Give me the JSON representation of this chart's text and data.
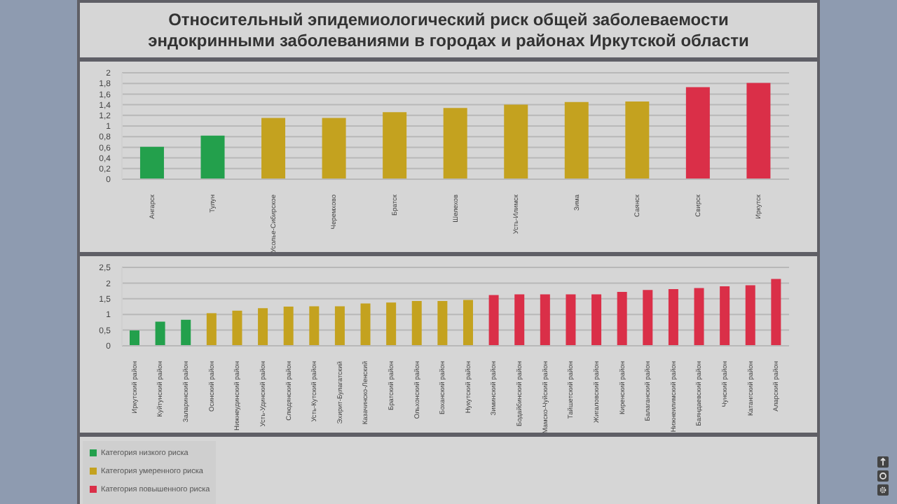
{
  "chart_data": [
    {
      "type": "bar",
      "title": "Относительный эпидемиологический риск общей заболеваемости эндокринными заболеваниями в городах и районах Иркутской области",
      "categories": [
        "Ангарск",
        "Тулун",
        "Усолье-Сибирское",
        "Черемхово",
        "Братск",
        "Шелехов",
        "Усть-Илимск",
        "Зима",
        "Саянск",
        "Свирск",
        "Иркутск"
      ],
      "stacked": true,
      "series": [
        {
          "color": "#23a04c",
          "values": [
            0.61,
            0.82,
            null,
            null,
            null,
            null,
            null,
            null,
            null,
            null,
            null
          ]
        },
        {
          "color": "#c4a21f",
          "values": [
            null,
            null,
            1.15,
            1.15,
            1.26,
            1.34,
            1.4,
            1.45,
            1.46,
            null,
            null
          ]
        },
        {
          "color": "#da2f48",
          "values": [
            null,
            null,
            null,
            null,
            null,
            null,
            null,
            null,
            null,
            1.73,
            1.81
          ]
        }
      ],
      "ylim": [
        0,
        2
      ],
      "yticks": [
        {
          "value": 0,
          "label": "0"
        },
        {
          "value": 0.2,
          "label": "0,2"
        },
        {
          "value": 0.4,
          "label": "0,4"
        },
        {
          "value": 0.6,
          "label": "0,6"
        },
        {
          "value": 0.8,
          "label": "0,8"
        },
        {
          "value": 1,
          "label": "1"
        },
        {
          "value": 1.2,
          "label": "1,2"
        },
        {
          "value": 1.4,
          "label": "1,4"
        },
        {
          "value": 1.6,
          "label": "1,6"
        },
        {
          "value": 1.8,
          "label": "1,8"
        },
        {
          "value": 2,
          "label": "2"
        }
      ],
      "grid": "y",
      "legend": false
    },
    {
      "type": "bar",
      "categories": [
        "Иркутский район",
        "Куйтунский район",
        "Заларинский район",
        "Осинский район",
        "Нижнеудинский район",
        "Усть-Удинский район",
        "Слюдянский район",
        "Усть-Кутский район",
        "Эхирит-Булагатский",
        "Казачинско-Ленский",
        "Братский район",
        "Ольхонский район",
        "Боханский район",
        "Нукутский район",
        "Зиминский район",
        "Бодайбинский район",
        "Мамско-Чуйский район",
        "Тайшетский район",
        "Жигаловский район",
        "Киренский район",
        "Балаганский район",
        "Нижнеилимский район",
        "Баяндаевский район",
        "Чунский район",
        "Катангский район",
        "Аларский район"
      ],
      "stacked": true,
      "series": [
        {
          "name": "Категория низкого риска",
          "color": "#23a04c",
          "values": [
            0.49,
            0.77,
            0.83,
            null,
            null,
            null,
            null,
            null,
            null,
            null,
            null,
            null,
            null,
            null,
            null,
            null,
            null,
            null,
            null,
            null,
            null,
            null,
            null,
            null,
            null,
            null
          ]
        },
        {
          "name": "Категория умеренного риска",
          "color": "#c4a21f",
          "values": [
            null,
            null,
            null,
            1.04,
            1.12,
            1.2,
            1.25,
            1.26,
            1.26,
            1.35,
            1.38,
            1.43,
            1.43,
            1.46,
            null,
            null,
            null,
            null,
            null,
            null,
            null,
            null,
            null,
            null,
            null,
            null
          ]
        },
        {
          "name": "Категория повышенного риска",
          "color": "#da2f48",
          "values": [
            null,
            null,
            null,
            null,
            null,
            null,
            null,
            null,
            null,
            null,
            null,
            null,
            null,
            null,
            1.62,
            1.64,
            1.64,
            1.64,
            1.64,
            1.72,
            1.78,
            1.81,
            1.84,
            1.9,
            1.93,
            2.13
          ]
        }
      ],
      "ylim": [
        0,
        2.5
      ],
      "yticks": [
        {
          "value": 0,
          "label": "0"
        },
        {
          "value": 0.5,
          "label": "0,5"
        },
        {
          "value": 1,
          "label": "1"
        },
        {
          "value": 1.5,
          "label": "1,5"
        },
        {
          "value": 2,
          "label": "2"
        },
        {
          "value": 2.5,
          "label": "2,5"
        }
      ],
      "grid": "y",
      "legend": "bottom left"
    }
  ]
}
